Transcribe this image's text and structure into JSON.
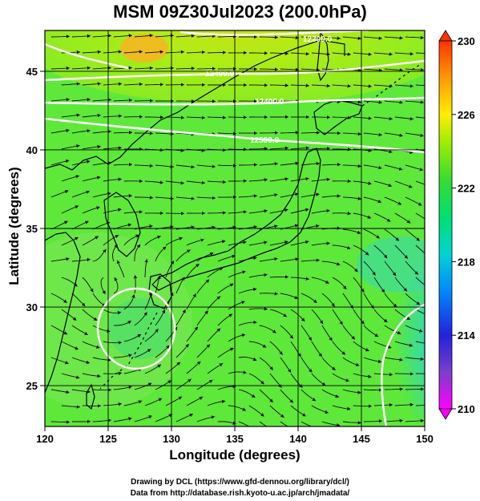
{
  "title": "MSM 09Z30Jul2023 (200.0hPa)",
  "x_axis": {
    "label": "Longitude (degrees)",
    "ticks": [
      "120",
      "125",
      "130",
      "135",
      "140",
      "145",
      "150"
    ],
    "range": [
      120,
      150
    ]
  },
  "y_axis": {
    "label": "Latitude  (degrees)",
    "ticks": [
      "25",
      "30",
      "35",
      "40",
      "45"
    ],
    "range": [
      22.4,
      47.6
    ]
  },
  "colorbar": {
    "ticks": [
      "230",
      "226",
      "222",
      "218",
      "214",
      "210"
    ],
    "range": [
      210,
      230
    ],
    "colors": [
      "#ff00ff",
      "#7b3fcc",
      "#2222dd",
      "#0088ff",
      "#00d4d4",
      "#00e070",
      "#33dd33",
      "#99ee00",
      "#ffee00",
      "#ff9900",
      "#ff3300"
    ]
  },
  "contour_labels": [
    "12300.0",
    "12400.0",
    "12500.0"
  ],
  "credits": [
    "Drawing by DCL (https://www.gfd-dennou.org/library/dcl/)",
    "Data from http://database.rish.kyoto-u.ac.jp/arch/jmadata/"
  ],
  "colors": {
    "field_base": "#5ee83a",
    "field_yellow": "#c8ee10",
    "field_cyan": "#3ad9b0",
    "contour": "#ffffff",
    "coast": "#000000",
    "vectors": "#111111"
  }
}
